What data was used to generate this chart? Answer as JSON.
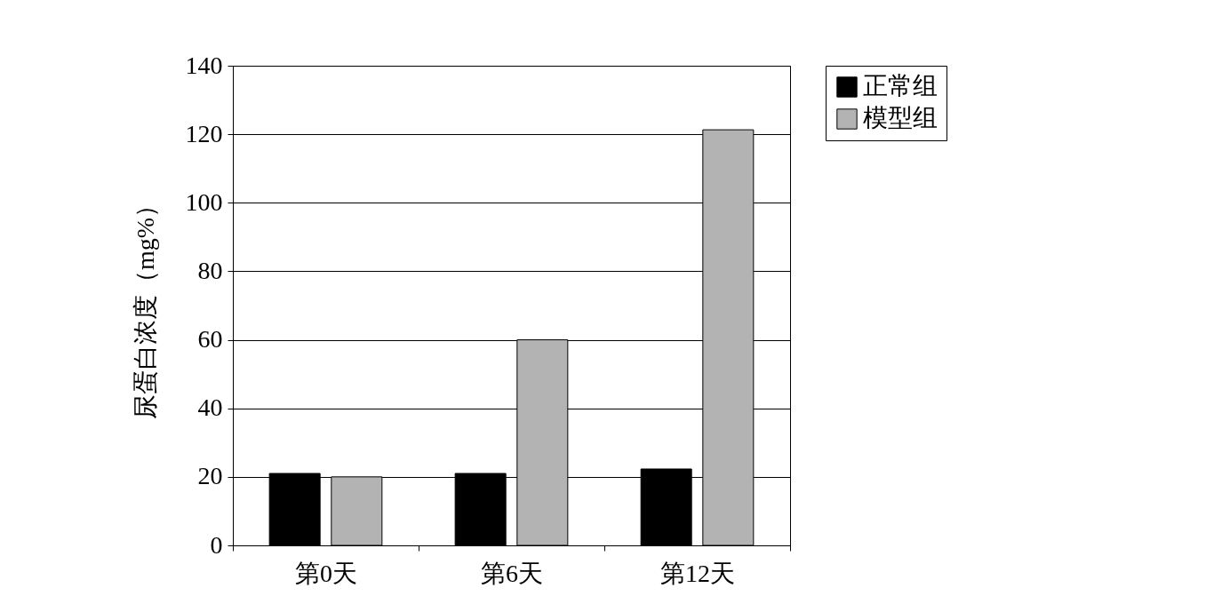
{
  "chart_data": {
    "type": "bar",
    "ylabel": "尿蛋白浓度（mg%）",
    "categories": [
      "第0天",
      "第6天",
      "第12天"
    ],
    "series": [
      {
        "name": "正常组",
        "color": "#000000",
        "values": [
          21,
          21,
          22.3
        ]
      },
      {
        "name": "模型组",
        "color": "#b3b3b3",
        "values": [
          20,
          60,
          121.3
        ]
      }
    ],
    "ylim": [
      0,
      140
    ],
    "yticks": [
      0,
      20,
      40,
      60,
      80,
      100,
      120,
      140
    ],
    "grid": "y",
    "legend": "right"
  }
}
